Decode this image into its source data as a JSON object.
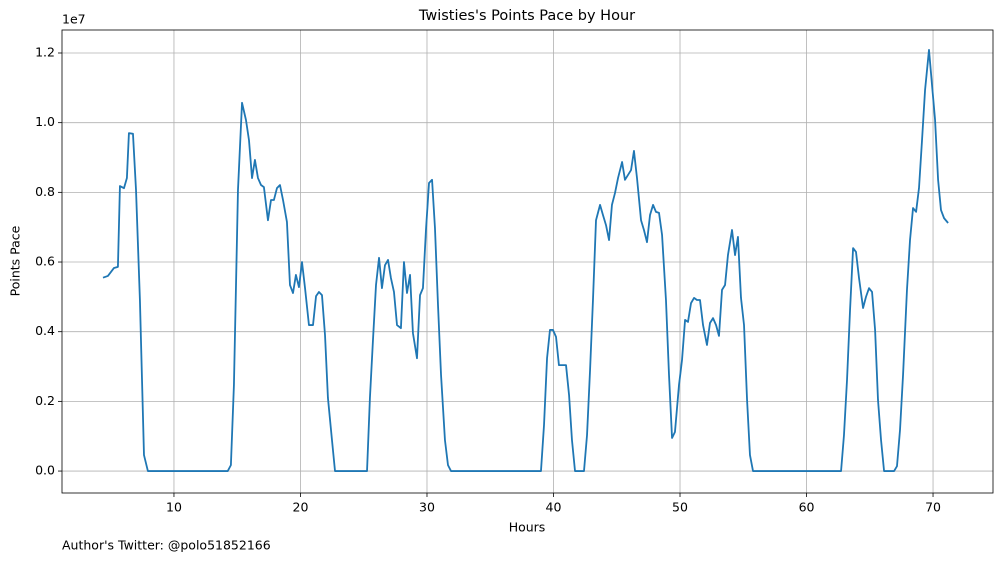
{
  "chart_data": {
    "type": "line",
    "title": "Twisties's Points Pace by Hour",
    "x_label": "Hours",
    "y_label": "Points Pace",
    "y_offset_label": "1e7",
    "footer": "Author's Twitter: @polo51852166",
    "color": "#1f77b4",
    "grid": true,
    "xlim": [
      1.15,
      74.74
    ],
    "ylim": [
      -0.063,
      1.266
    ],
    "xticks": [
      10,
      20,
      30,
      40,
      50,
      60,
      70
    ],
    "yticks": [
      {
        "value": 0,
        "label": "0.0"
      },
      0.2,
      0.4,
      0.6,
      0.8,
      {
        "value": 1,
        "label": "1.0"
      },
      1.2
    ],
    "x": [
      4.39,
      4.78,
      5.26,
      5.57,
      5.73,
      6.05,
      6.28,
      6.44,
      6.76,
      7.0,
      7.31,
      7.63,
      7.94,
      14.25,
      14.5,
      14.74,
      15.06,
      15.38,
      15.69,
      15.93,
      16.17,
      16.4,
      16.64,
      16.88,
      17.11,
      17.43,
      17.67,
      17.9,
      18.14,
      18.38,
      18.62,
      18.93,
      19.17,
      19.41,
      19.64,
      19.88,
      20.12,
      20.36,
      20.67,
      20.99,
      21.23,
      21.46,
      21.7,
      21.94,
      22.17,
      22.49,
      22.73,
      25.26,
      25.49,
      25.73,
      25.97,
      26.21,
      26.44,
      26.68,
      26.92,
      27.15,
      27.39,
      27.63,
      27.94,
      28.18,
      28.42,
      28.66,
      28.89,
      29.21,
      29.45,
      29.68,
      29.92,
      30.16,
      30.4,
      30.63,
      30.87,
      31.11,
      31.42,
      31.66,
      31.9,
      39.01,
      39.25,
      39.49,
      39.72,
      39.96,
      40.2,
      40.43,
      40.67,
      40.99,
      41.23,
      41.46,
      41.7,
      42.41,
      42.65,
      42.89,
      43.12,
      43.36,
      43.68,
      43.91,
      44.15,
      44.39,
      44.62,
      44.86,
      45.1,
      45.42,
      45.65,
      45.89,
      46.13,
      46.36,
      46.6,
      46.92,
      47.15,
      47.39,
      47.63,
      47.87,
      48.1,
      48.34,
      48.58,
      48.89,
      49.13,
      49.37,
      49.6,
      49.92,
      50.16,
      50.4,
      50.63,
      50.87,
      51.11,
      51.34,
      51.58,
      51.82,
      52.13,
      52.37,
      52.61,
      52.85,
      53.08,
      53.32,
      53.56,
      53.79,
      54.11,
      54.35,
      54.58,
      54.82,
      55.06,
      55.3,
      55.53,
      55.77,
      62.73,
      62.96,
      63.2,
      63.44,
      63.68,
      63.91,
      64.15,
      64.47,
      64.7,
      64.94,
      65.18,
      65.42,
      65.65,
      65.89,
      66.13,
      66.92,
      67.15,
      67.39,
      67.63,
      67.94,
      68.18,
      68.42,
      68.66,
      68.89,
      69.13,
      69.37,
      69.68,
      69.92,
      70.16,
      70.4,
      70.63,
      70.87,
      71.19
    ],
    "values": [
      0.555,
      0.56,
      0.583,
      0.586,
      0.818,
      0.812,
      0.841,
      0.97,
      0.968,
      0.807,
      0.49,
      0.046,
      0,
      0,
      0.017,
      0.247,
      0.807,
      1.057,
      1.008,
      0.95,
      0.841,
      0.893,
      0.841,
      0.821,
      0.815,
      0.72,
      0.778,
      0.778,
      0.812,
      0.821,
      0.778,
      0.715,
      0.534,
      0.511,
      0.563,
      0.528,
      0.6,
      0.525,
      0.419,
      0.419,
      0.502,
      0.514,
      0.505,
      0.39,
      0.21,
      0.089,
      0,
      0,
      0.21,
      0.376,
      0.534,
      0.612,
      0.525,
      0.591,
      0.606,
      0.554,
      0.514,
      0.419,
      0.41,
      0.6,
      0.511,
      0.563,
      0.396,
      0.324,
      0.505,
      0.525,
      0.692,
      0.827,
      0.836,
      0.698,
      0.477,
      0.276,
      0.089,
      0.017,
      0,
      0,
      0.132,
      0.324,
      0.405,
      0.405,
      0.385,
      0.304,
      0.304,
      0.304,
      0.218,
      0.089,
      0,
      0,
      0.103,
      0.29,
      0.491,
      0.72,
      0.764,
      0.735,
      0.706,
      0.663,
      0.764,
      0.798,
      0.841,
      0.887,
      0.836,
      0.85,
      0.864,
      0.919,
      0.841,
      0.72,
      0.692,
      0.657,
      0.735,
      0.764,
      0.744,
      0.741,
      0.678,
      0.491,
      0.276,
      0.095,
      0.112,
      0.247,
      0.319,
      0.434,
      0.428,
      0.482,
      0.497,
      0.491,
      0.491,
      0.419,
      0.362,
      0.425,
      0.439,
      0.419,
      0.388,
      0.52,
      0.534,
      0.62,
      0.692,
      0.62,
      0.672,
      0.497,
      0.419,
      0.204,
      0.046,
      0,
      0,
      0.103,
      0.261,
      0.462,
      0.64,
      0.629,
      0.554,
      0.468,
      0.5,
      0.525,
      0.514,
      0.405,
      0.204,
      0.089,
      0,
      0,
      0.014,
      0.118,
      0.276,
      0.52,
      0.663,
      0.755,
      0.744,
      0.812,
      0.95,
      1.094,
      1.209,
      1.108,
      1.008,
      0.836,
      0.749,
      0.726,
      0.712
    ]
  }
}
